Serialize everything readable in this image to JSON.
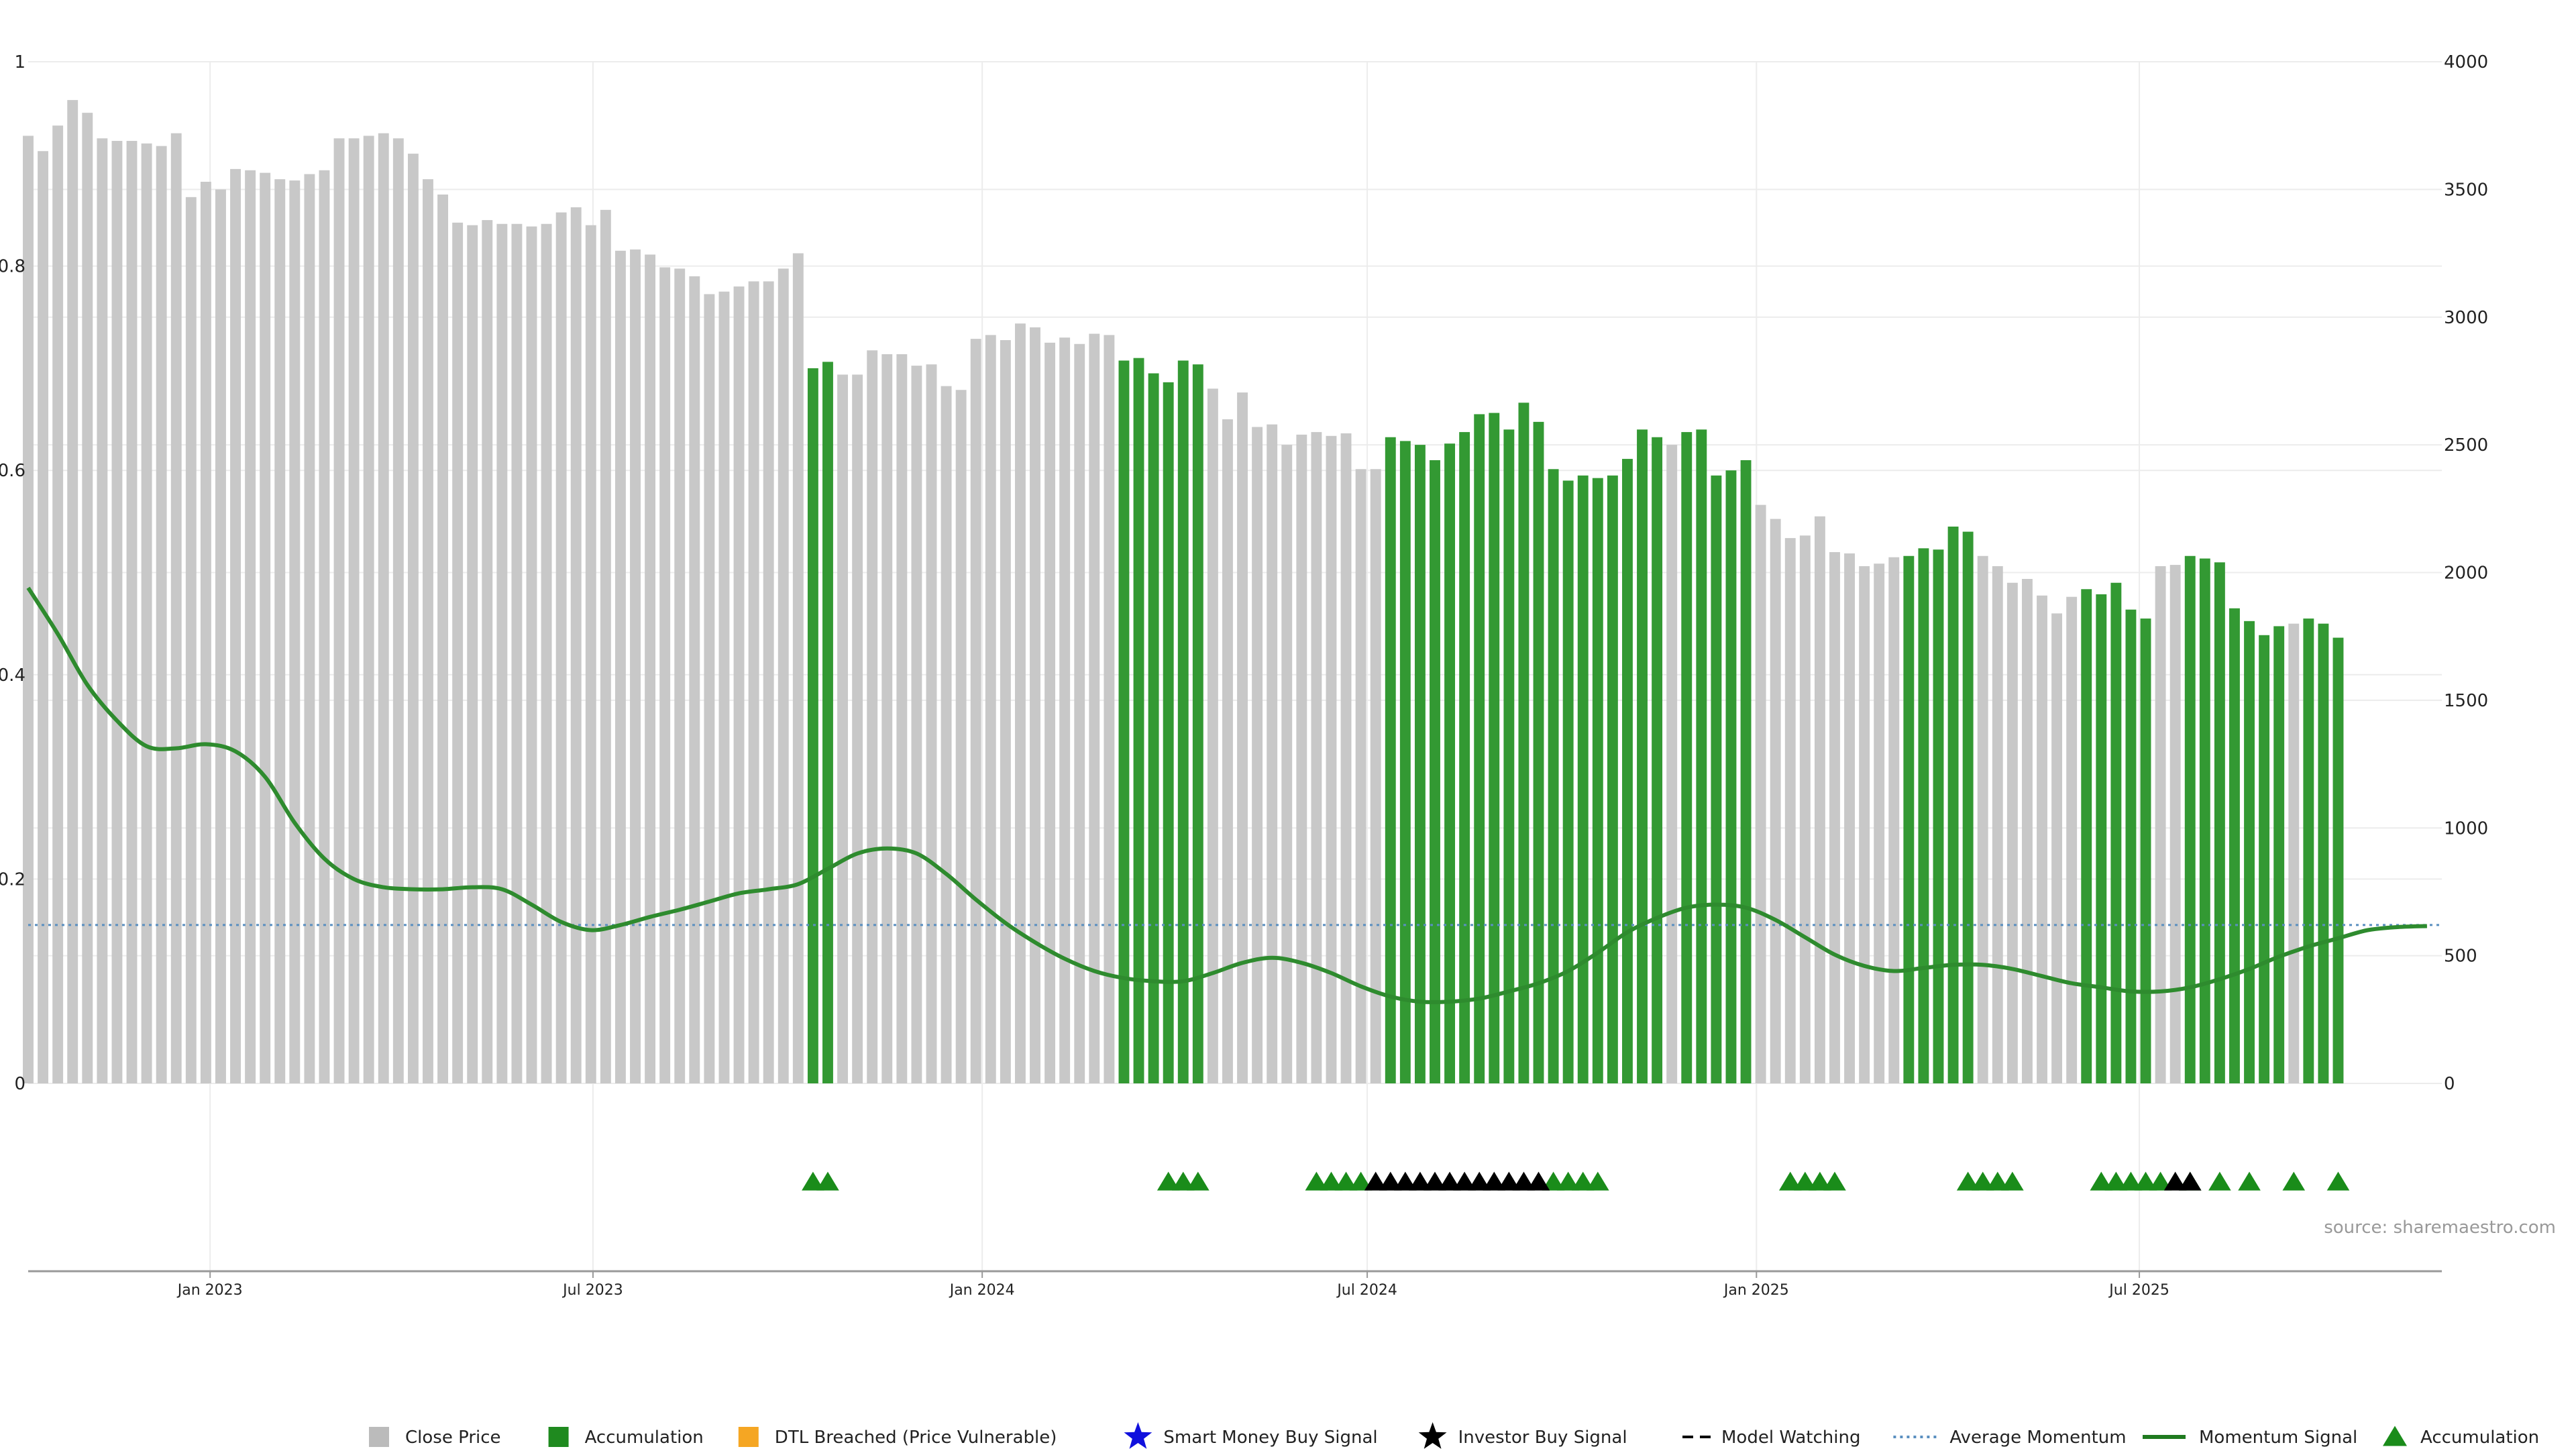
{
  "chart_data": {
    "type": "bar",
    "title": "",
    "xlabel": "",
    "ylabel": "",
    "x_range": [
      "2022-10-07",
      "2025-11-21"
    ],
    "x_ticks": [
      {
        "date": "2023-01-01",
        "label": "Jan 2023"
      },
      {
        "date": "2023-07-01",
        "label": "Jul 2023"
      },
      {
        "date": "2024-01-01",
        "label": "Jan 2024"
      },
      {
        "date": "2024-07-01",
        "label": "Jul 2024"
      },
      {
        "date": "2025-01-01",
        "label": "Jan 2025"
      },
      {
        "date": "2025-07-01",
        "label": "Jul 2025"
      }
    ],
    "y_left": {
      "ylim": [
        0,
        1
      ],
      "ticks": [
        "0",
        "0.2",
        "0.4",
        "0.6",
        "0.8",
        "1"
      ]
    },
    "y_right": {
      "ylim": [
        0,
        4000
      ],
      "ticks": [
        "0",
        "500",
        "1000",
        "1500",
        "2000",
        "2500",
        "3000",
        "3500",
        "4000"
      ]
    },
    "grid": true,
    "legend_position": "bottom",
    "source": "source: sharemaestro.com",
    "close_price_week_start": "2022-10-07",
    "close_price_interval_days": 7,
    "close_price": [
      3710,
      3650,
      3750,
      3850,
      3800,
      3700,
      3690,
      3690,
      3680,
      3670,
      3720,
      3470,
      3530,
      3500,
      3580,
      3575,
      3565,
      3540,
      3535,
      3560,
      3575,
      3700,
      3700,
      3710,
      3720,
      3700,
      3640,
      3540,
      3480,
      3370,
      3360,
      3380,
      3365,
      3365,
      3355,
      3365,
      3410,
      3430,
      3360,
      3420,
      3260,
      3265,
      3245,
      3195,
      3190,
      3160,
      3090,
      3100,
      3120,
      3140,
      3140,
      3190,
      3250,
      2800,
      2825,
      2775,
      2775,
      2870,
      2855,
      2855,
      2810,
      2815,
      2730,
      2715,
      2915,
      2930,
      2910,
      2975,
      2960,
      2900,
      2920,
      2895,
      2935,
      2930,
      2830,
      2840,
      2780,
      2745,
      2830,
      2815,
      2720,
      2600,
      2705,
      2570,
      2580,
      2500,
      2540,
      2550,
      2535,
      2545,
      2405,
      2405,
      2530,
      2515,
      2500,
      2440,
      2505,
      2550,
      2620,
      2625,
      2560,
      2665,
      2590,
      2405,
      2360,
      2380,
      2370,
      2380,
      2445,
      2560,
      2530,
      2500,
      2550,
      2560,
      2380,
      2400,
      2440,
      2265,
      2210,
      2135,
      2145,
      2220,
      2080,
      2075,
      2025,
      2035,
      2060,
      2065,
      2095,
      2090,
      2180,
      2160,
      2065,
      2025,
      1960,
      1975,
      1910,
      1840,
      1905,
      1935,
      1915,
      1960,
      1855,
      1820,
      2025,
      2030,
      2065,
      2055,
      2040,
      1860,
      1810,
      1755,
      1790,
      1800,
      1820,
      1800,
      1745
    ],
    "accumulation_index": [
      53,
      54,
      74,
      75,
      76,
      77,
      78,
      79,
      92,
      93,
      94,
      95,
      96,
      97,
      98,
      99,
      100,
      101,
      102,
      103,
      104,
      105,
      106,
      107,
      108,
      109,
      110,
      112,
      113,
      114,
      115,
      116,
      127,
      128,
      129,
      130,
      131,
      139,
      140,
      141,
      142,
      143,
      146,
      147,
      148,
      149,
      150,
      151,
      152,
      154,
      155,
      156,
      157,
      158,
      159,
      160,
      161,
      162,
      163,
      164
    ],
    "accumulation_marker_index": [
      53,
      54,
      77,
      78,
      79,
      87,
      88,
      89,
      90,
      103,
      104,
      105,
      106,
      119,
      120,
      121,
      122,
      131,
      132,
      133,
      134,
      140,
      141,
      142,
      143,
      144,
      146,
      148,
      150,
      153,
      156
    ],
    "investor_buy_index": [
      91,
      92,
      93,
      94,
      95,
      96,
      97,
      98,
      99,
      100,
      101,
      102,
      145,
      146
    ],
    "momentum_signal": [
      [
        "2022-10-07",
        0.485
      ],
      [
        "2022-10-21",
        0.44
      ],
      [
        "2022-11-04",
        0.39
      ],
      [
        "2022-11-18",
        0.355
      ],
      [
        "2022-12-02",
        0.33
      ],
      [
        "2022-12-16",
        0.328
      ],
      [
        "2022-12-30",
        0.332
      ],
      [
        "2023-01-13",
        0.325
      ],
      [
        "2023-01-27",
        0.3
      ],
      [
        "2023-02-10",
        0.255
      ],
      [
        "2023-02-24",
        0.22
      ],
      [
        "2023-03-10",
        0.2
      ],
      [
        "2023-03-24",
        0.192
      ],
      [
        "2023-04-07",
        0.19
      ],
      [
        "2023-04-21",
        0.19
      ],
      [
        "2023-05-05",
        0.192
      ],
      [
        "2023-05-19",
        0.19
      ],
      [
        "2023-06-02",
        0.175
      ],
      [
        "2023-06-16",
        0.158
      ],
      [
        "2023-06-30",
        0.15
      ],
      [
        "2023-07-14",
        0.155
      ],
      [
        "2023-07-28",
        0.163
      ],
      [
        "2023-08-11",
        0.17
      ],
      [
        "2023-08-25",
        0.178
      ],
      [
        "2023-09-08",
        0.186
      ],
      [
        "2023-09-22",
        0.19
      ],
      [
        "2023-10-06",
        0.195
      ],
      [
        "2023-10-20",
        0.21
      ],
      [
        "2023-11-03",
        0.225
      ],
      [
        "2023-11-17",
        0.23
      ],
      [
        "2023-12-01",
        0.225
      ],
      [
        "2023-12-15",
        0.205
      ],
      [
        "2023-12-29",
        0.18
      ],
      [
        "2024-01-12",
        0.157
      ],
      [
        "2024-01-26",
        0.138
      ],
      [
        "2024-02-09",
        0.122
      ],
      [
        "2024-02-23",
        0.11
      ],
      [
        "2024-03-08",
        0.103
      ],
      [
        "2024-03-22",
        0.1
      ],
      [
        "2024-04-05",
        0.1
      ],
      [
        "2024-04-19",
        0.108
      ],
      [
        "2024-05-03",
        0.118
      ],
      [
        "2024-05-17",
        0.123
      ],
      [
        "2024-05-31",
        0.118
      ],
      [
        "2024-06-14",
        0.108
      ],
      [
        "2024-06-28",
        0.095
      ],
      [
        "2024-07-12",
        0.085
      ],
      [
        "2024-07-26",
        0.08
      ],
      [
        "2024-08-09",
        0.08
      ],
      [
        "2024-08-23",
        0.083
      ],
      [
        "2024-09-06",
        0.09
      ],
      [
        "2024-09-20",
        0.098
      ],
      [
        "2024-10-04",
        0.11
      ],
      [
        "2024-10-18",
        0.128
      ],
      [
        "2024-11-01",
        0.148
      ],
      [
        "2024-11-15",
        0.162
      ],
      [
        "2024-11-29",
        0.172
      ],
      [
        "2024-12-13",
        0.175
      ],
      [
        "2024-12-27",
        0.172
      ],
      [
        "2025-01-10",
        0.16
      ],
      [
        "2025-01-24",
        0.143
      ],
      [
        "2025-02-07",
        0.126
      ],
      [
        "2025-02-21",
        0.115
      ],
      [
        "2025-03-07",
        0.11
      ],
      [
        "2025-03-21",
        0.113
      ],
      [
        "2025-04-04",
        0.116
      ],
      [
        "2025-04-18",
        0.116
      ],
      [
        "2025-05-02",
        0.112
      ],
      [
        "2025-05-16",
        0.105
      ],
      [
        "2025-05-30",
        0.098
      ],
      [
        "2025-06-13",
        0.094
      ],
      [
        "2025-06-27",
        0.09
      ],
      [
        "2025-07-11",
        0.09
      ],
      [
        "2025-07-25",
        0.094
      ],
      [
        "2025-08-08",
        0.102
      ],
      [
        "2025-08-22",
        0.112
      ],
      [
        "2025-09-05",
        0.124
      ],
      [
        "2025-09-19",
        0.134
      ],
      [
        "2025-10-03",
        0.142
      ],
      [
        "2025-10-17",
        0.15
      ],
      [
        "2025-10-31",
        0.153
      ],
      [
        "2025-11-14",
        0.154
      ]
    ],
    "average_momentum": 0.155,
    "colors": {
      "close_price": "#c8c8c8",
      "accumulation": "#339933",
      "momentum": "#2e8b2e",
      "average_momentum": "#5a8fc0",
      "marker_accumulation": "#1a8c1a",
      "marker_investor": "#000000",
      "smart_money": "#1010dd",
      "dtl_breached": "#f5a623",
      "grid": "#ececec",
      "axis": "#999999"
    },
    "legend": [
      {
        "id": "close-price",
        "label": "Close Price",
        "type": "square",
        "color": "#bbbbbb"
      },
      {
        "id": "accumulation-bar",
        "label": "Accumulation",
        "type": "square",
        "color": "#1f8a1f"
      },
      {
        "id": "dtl-breached",
        "label": "DTL Breached (Price Vulnerable)",
        "type": "square",
        "color": "#f5a623"
      },
      {
        "id": "smart-money",
        "label": "Smart Money Buy Signal",
        "type": "star",
        "color": "#1010dd"
      },
      {
        "id": "investor-buy",
        "label": "Investor Buy Signal",
        "type": "star",
        "color": "#000000"
      },
      {
        "id": "model-watching",
        "label": "Model Watching",
        "type": "dash",
        "color": "#000000"
      },
      {
        "id": "average-momentum",
        "label": "Average Momentum",
        "type": "dotted",
        "color": "#5a8fc0"
      },
      {
        "id": "momentum-signal",
        "label": "Momentum Signal",
        "type": "line",
        "color": "#1f7a1f"
      },
      {
        "id": "accumulation-marker",
        "label": "Accumulation",
        "type": "triangle",
        "color": "#1a8c1a"
      }
    ]
  }
}
